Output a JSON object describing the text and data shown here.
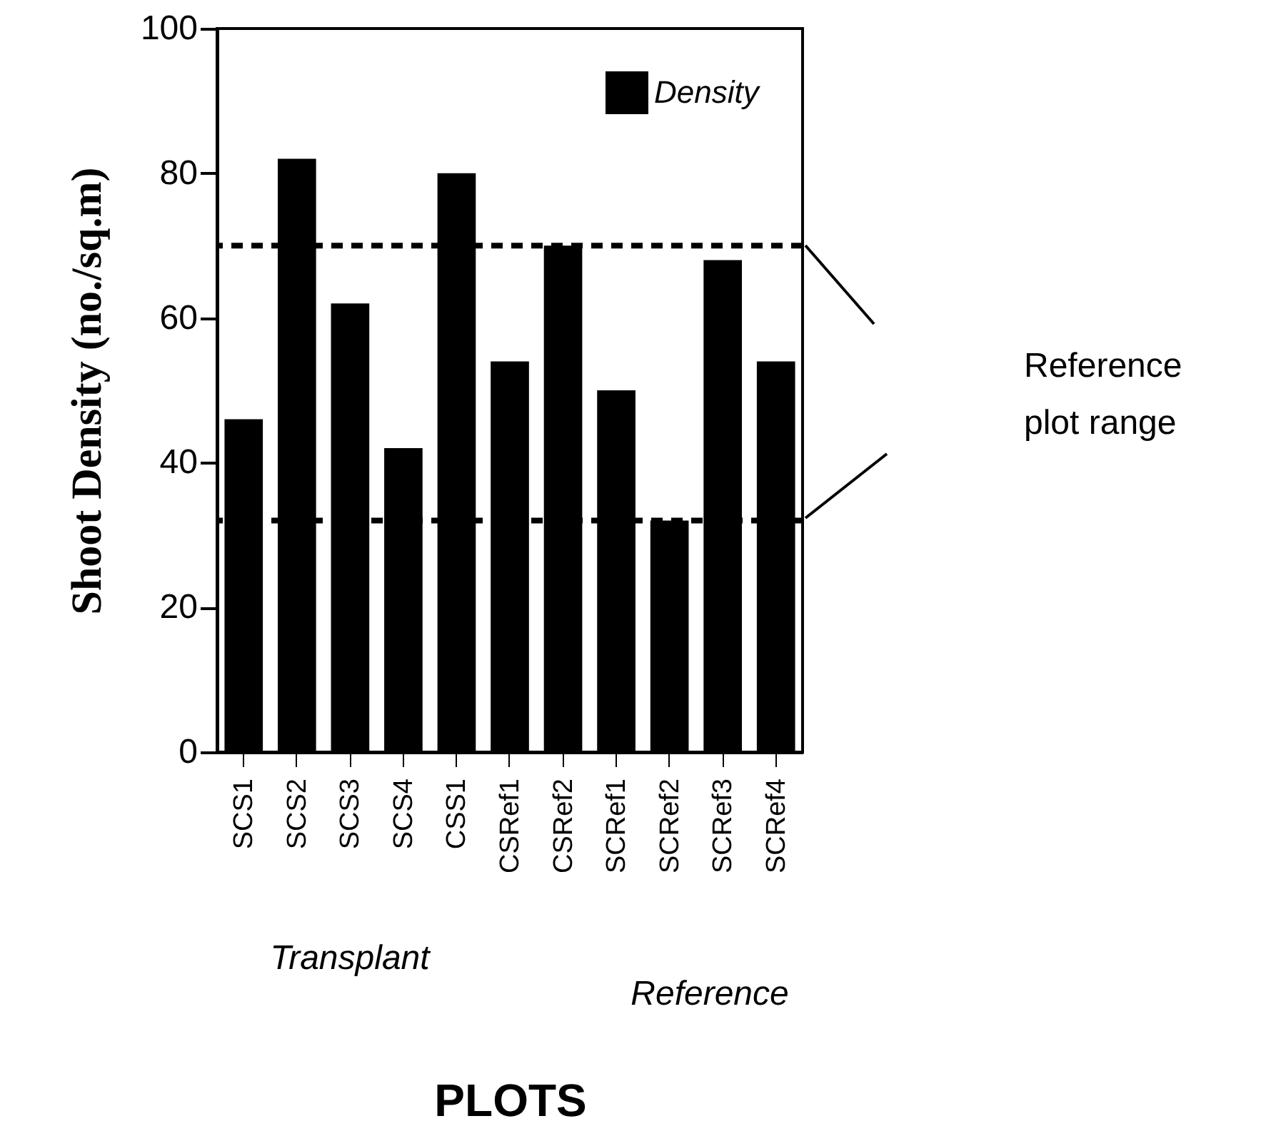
{
  "chart_data": {
    "type": "bar",
    "xlabel": "PLOTS",
    "ylabel": "Shoot Density (no./sq.m)",
    "categories": [
      "SCS1",
      "SCS2",
      "SCS3",
      "SCS4",
      "CSS1",
      "CSRef1",
      "CSRef2",
      "SCRef1",
      "SCRef2",
      "SCRef3",
      "SCRef4"
    ],
    "series": [
      {
        "name": "Density",
        "color": "#000000",
        "values": [
          46,
          82,
          62,
          42,
          80,
          54,
          70,
          50,
          32,
          68,
          54
        ]
      }
    ],
    "ylim": [
      0,
      100
    ],
    "yticks": [
      0,
      20,
      40,
      60,
      80,
      100
    ],
    "grid": false,
    "legend": "top right",
    "ref_lines": [
      {
        "axis": "y",
        "value": 70,
        "color": "#000000",
        "line_style": "dashed"
      },
      {
        "axis": "y",
        "value": 32,
        "color": "#000000",
        "line_style": "dashed"
      }
    ],
    "annotations": [
      "Reference plot range",
      "Transplant",
      "Reference"
    ]
  }
}
